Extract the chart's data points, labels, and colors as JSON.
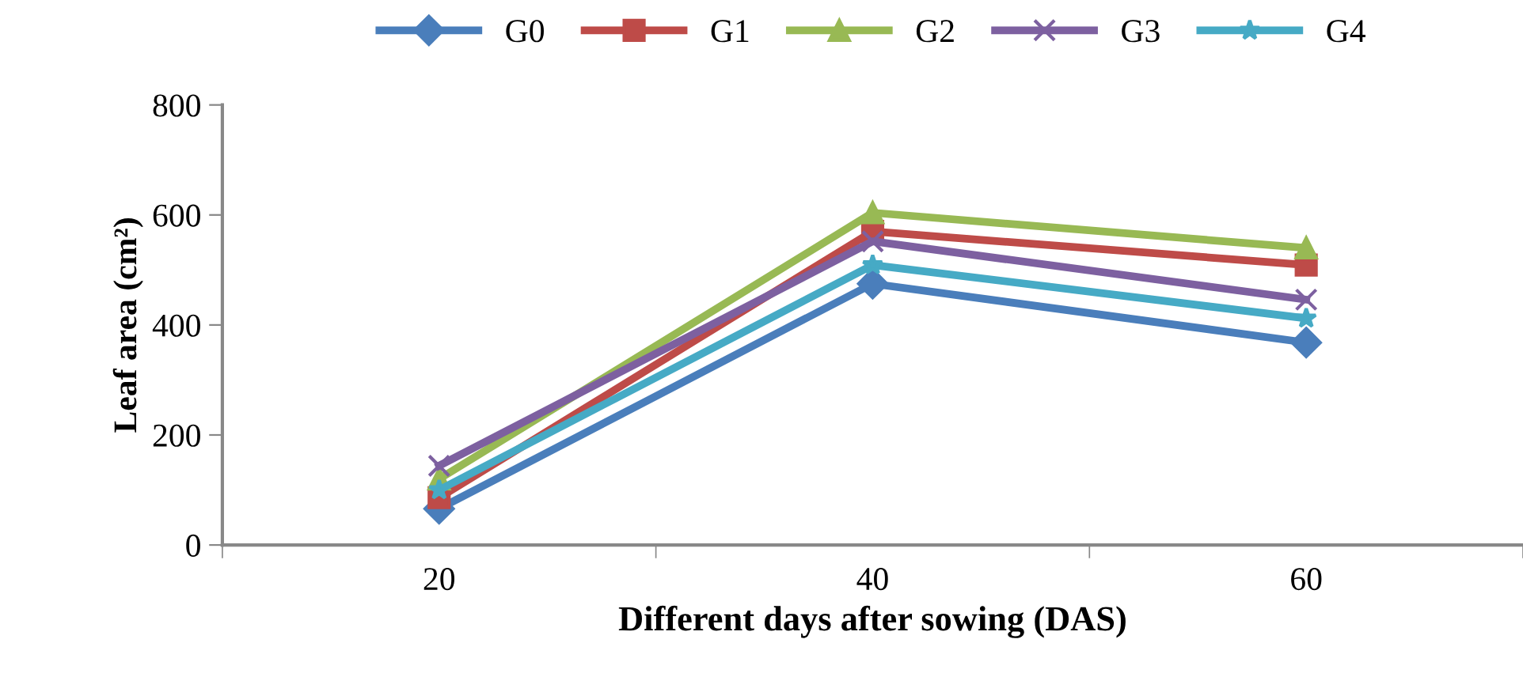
{
  "chart_data": {
    "type": "line",
    "xlabel": "Different days after sowing (DAS)",
    "ylabel": "Leaf area (cm²)",
    "categories": [
      "20",
      "40",
      "60"
    ],
    "ylim": [
      0,
      800
    ],
    "yticks": [
      0,
      200,
      400,
      600,
      800
    ],
    "grid": false,
    "legend": "top",
    "series": [
      {
        "name": "G0",
        "color": "#4a7ebb",
        "marker": "diamond",
        "values": [
          66,
          475,
          368
        ]
      },
      {
        "name": "G1",
        "color": "#be4b48",
        "marker": "square",
        "values": [
          86,
          570,
          509
        ]
      },
      {
        "name": "G2",
        "color": "#98b954",
        "marker": "triangle",
        "values": [
          120,
          604,
          540
        ]
      },
      {
        "name": "G3",
        "color": "#7d60a0",
        "marker": "cross",
        "values": [
          144,
          552,
          446
        ]
      },
      {
        "name": "G4",
        "color": "#46aac5",
        "marker": "star",
        "values": [
          100,
          509,
          412
        ]
      }
    ]
  }
}
